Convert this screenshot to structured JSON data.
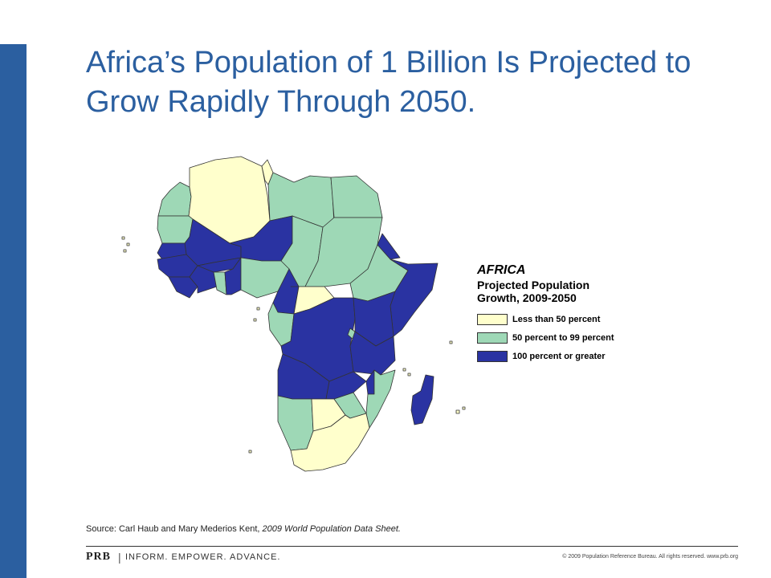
{
  "title": "Africa’s Population of 1 Billion Is Projected to Grow Rapidly Through 2050.",
  "colors": {
    "brand": "#2b5fa0",
    "low": "#ffffcc",
    "mid": "#9ed8b6",
    "high": "#2a33a2"
  },
  "legend": {
    "title": "AFRICA",
    "subtitle": "Projected Population Growth, 2009-2050",
    "items": [
      {
        "label": "Less than 50 percent",
        "color": "#ffffcc"
      },
      {
        "label": "50 percent to 99 percent",
        "color": "#9ed8b6"
      },
      {
        "label": "100 percent or greater",
        "color": "#2a33a2"
      }
    ]
  },
  "source": {
    "prefix": "Source: Carl Haub and Mary Mederios Kent, ",
    "publication": "2009 World Population Data Sheet."
  },
  "footer": {
    "logo": "PRB",
    "separator": "|",
    "tagline": "INFORM. EMPOWER. ADVANCE.",
    "copyright": "© 2009 Population Reference Bureau. All rights reserved. www.prb.org"
  }
}
